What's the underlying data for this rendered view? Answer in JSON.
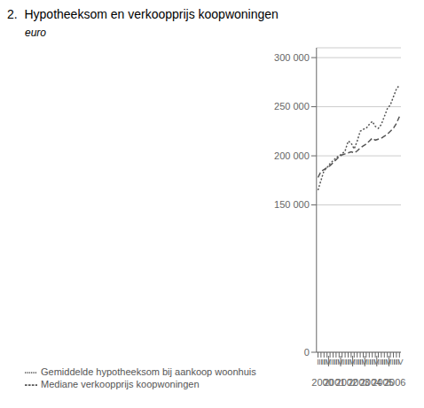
{
  "chart_data": {
    "type": "line",
    "title": "2.  Hypotheeksom en verkoopprijs koopwoningen",
    "ylabel": "euro",
    "categories": [
      "I",
      "II",
      "III",
      "IV",
      "I",
      "II",
      "III",
      "IV",
      "I",
      "II",
      "III",
      "IV",
      "I",
      "II",
      "III",
      "IV",
      "I",
      "II",
      "III",
      "IV",
      "I",
      "II",
      "III",
      "IV",
      "I",
      "II",
      "III",
      "IV"
    ],
    "series": [
      {
        "name": "Gemiddelde hypotheeksom bij aankoop woonhuis",
        "color": "#555555",
        "line_style": "dotted",
        "values": [
          165000,
          175000,
          185000,
          188000,
          192000,
          195000,
          198000,
          200000,
          202000,
          205000,
          215000,
          213000,
          207000,
          215000,
          225000,
          227000,
          228000,
          232000,
          235000,
          230000,
          228000,
          232000,
          240000,
          248000,
          252000,
          260000,
          268000,
          272000
        ]
      },
      {
        "name": "Mediane verkoopprijs koopwoningen",
        "color": "#555555",
        "line_style": "dashed",
        "values": [
          178000,
          184000,
          186000,
          188000,
          190000,
          193000,
          196000,
          199000,
          201000,
          202000,
          203000,
          204000,
          203000,
          205000,
          208000,
          210000,
          212000,
          215000,
          218000,
          216000,
          217000,
          218000,
          220000,
          222000,
          225000,
          228000,
          233000,
          240000
        ]
      }
    ],
    "ylim": [
      0,
      310000
    ],
    "yticks": [
      0,
      {
        "value": 150000,
        "label": "150 000"
      },
      {
        "value": 200000,
        "label": "200 000"
      },
      {
        "value": 250000,
        "label": "250 000"
      },
      {
        "value": 300000,
        "label": "300 000"
      }
    ],
    "grid": true,
    "legend": "bottom",
    "annotations": [
      {
        "text": "2000",
        "x": 1.5
      },
      {
        "text": "2001",
        "x": 5.5
      },
      {
        "text": "2002",
        "x": 9.5
      },
      {
        "text": "2003",
        "x": 13.5
      },
      {
        "text": "2004",
        "x": 17.5
      },
      {
        "text": "2005",
        "x": 21.5
      },
      {
        "text": "2006",
        "x": 25.5
      }
    ]
  }
}
